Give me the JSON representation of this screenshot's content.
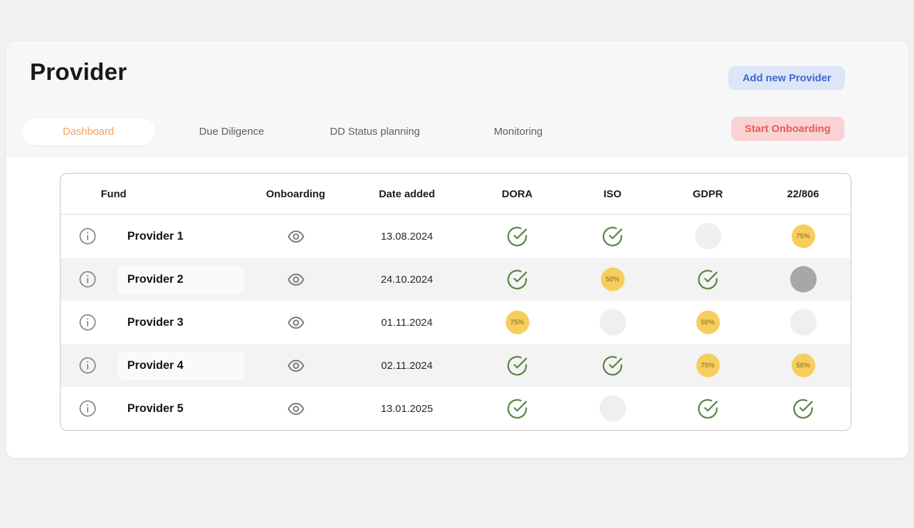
{
  "header": {
    "title": "Provider",
    "add_button": "Add new Provider",
    "start_button": "Start Onboarding"
  },
  "tabs": [
    {
      "label": "Dashboard",
      "active": true
    },
    {
      "label": "Due Diligence",
      "active": false
    },
    {
      "label": "DD Status planning",
      "active": false
    },
    {
      "label": "Monitoring",
      "active": false
    }
  ],
  "table": {
    "columns": [
      "Fund",
      "Onboarding",
      "Date added",
      "DORA",
      "ISO",
      "GDPR",
      "22/806"
    ],
    "status_keys": [
      "dora",
      "iso",
      "gdpr",
      "22-806"
    ],
    "rows": [
      {
        "name": "Provider 1",
        "date": "13.08.2024",
        "statuses": [
          {
            "type": "check"
          },
          {
            "type": "check"
          },
          {
            "type": "empty"
          },
          {
            "type": "percent",
            "label": "75%"
          }
        ]
      },
      {
        "name": "Provider 2",
        "date": "24.10.2024",
        "statuses": [
          {
            "type": "check"
          },
          {
            "type": "percent",
            "label": "50%"
          },
          {
            "type": "check"
          },
          {
            "type": "filled"
          }
        ]
      },
      {
        "name": "Provider 3",
        "date": "01.11.2024",
        "statuses": [
          {
            "type": "percent",
            "label": "75%"
          },
          {
            "type": "empty"
          },
          {
            "type": "percent",
            "label": "50%"
          },
          {
            "type": "empty"
          }
        ]
      },
      {
        "name": "Provider 4",
        "date": "02.11.2024",
        "statuses": [
          {
            "type": "check"
          },
          {
            "type": "check"
          },
          {
            "type": "percent",
            "label": "75%"
          },
          {
            "type": "percent",
            "label": "50%"
          }
        ]
      },
      {
        "name": "Provider 5",
        "date": "13.01.2025",
        "statuses": [
          {
            "type": "check"
          },
          {
            "type": "empty"
          },
          {
            "type": "check"
          },
          {
            "type": "check"
          }
        ]
      }
    ]
  },
  "icons": {
    "row_info": "info-icon",
    "row_view": "eye-icon",
    "status_done": "check-circle-icon"
  },
  "colors": {
    "page-bg": "#f1f1f2",
    "header-bg": "#f7f7f8",
    "accent-orange": "#eda15e",
    "add-bg": "#dce6f8",
    "add-text": "#3e68d0",
    "start-bg": "#f9d3d3",
    "start-text": "#ec5a52",
    "stripe": "#f3f3f4",
    "check-green": "#54823e",
    "badge-bg": "#f7ce5e",
    "badge-text": "#a5852f",
    "dot-empty": "#efeff0",
    "dot-filled": "#a7a7a9",
    "icon-gray": "#85858a"
  }
}
